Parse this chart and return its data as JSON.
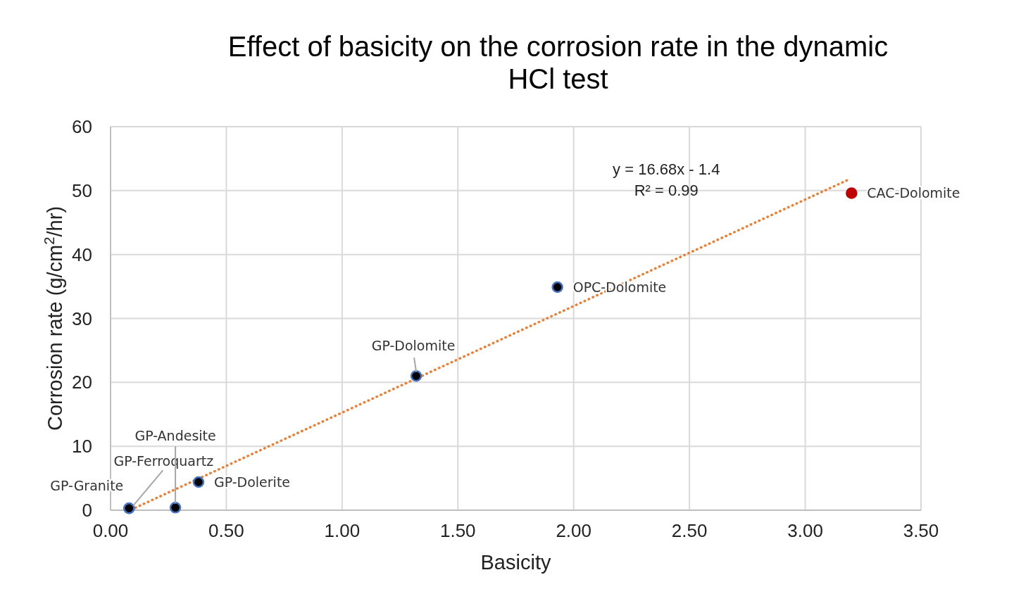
{
  "chart_data": {
    "type": "scatter",
    "title": "Effect of basicity on the corrosion rate in the dynamic HCl test",
    "xlabel": "Basicity",
    "ylabel": "Corrosion rate (g/cm$^{2}$/hr)",
    "xlim": [
      0,
      3.5
    ],
    "ylim": [
      0,
      60
    ],
    "xticks": [
      {
        "value": 0,
        "label": "0.00"
      },
      {
        "value": 0.5,
        "label": "0.50"
      },
      {
        "value": 1,
        "label": "1.00"
      },
      {
        "value": 1.5,
        "label": "1.50"
      },
      {
        "value": 2,
        "label": "2.00"
      },
      {
        "value": 2.5,
        "label": "2.50"
      },
      {
        "value": 3,
        "label": "3.00"
      },
      {
        "value": 3.5,
        "label": "3.50"
      }
    ],
    "yticks": [
      0,
      10,
      20,
      30,
      40,
      50,
      60
    ],
    "grid": true,
    "series": [
      {
        "marker": "circle",
        "x": [
          0.08,
          0.08,
          0.28,
          0.38,
          1.32,
          1.93,
          3.2
        ],
        "values": [
          0.3,
          0.3,
          0.4,
          4.4,
          21.0,
          34.9,
          49.6
        ],
        "colors": [
          "#000000",
          "#000000",
          "#000000",
          "#000000",
          "#000000",
          "#000000",
          "#c00000"
        ]
      },
      {
        "type": "line",
        "x": [
          0.09,
          3.18
        ],
        "values": [
          0.1,
          51.6
        ],
        "color": "#ed7d31",
        "line_style": "dotted",
        "marker": "none"
      }
    ],
    "annotations": [
      {
        "text": "GP-Granite",
        "x": 0.08,
        "y": 0.3
      },
      {
        "text": "GP-Ferroquartz",
        "x": 0.08,
        "y": 0.3
      },
      {
        "text": "GP-Andesite",
        "x": 0.28,
        "y": 0.4
      },
      {
        "text": "GP-Dolerite",
        "x": 0.38,
        "y": 4.4
      },
      {
        "text": "GP-Dolomite",
        "x": 1.32,
        "y": 21.0
      },
      {
        "text": "OPC-Dolomite",
        "x": 1.93,
        "y": 34.9
      },
      {
        "text": "CAC-Dolomite",
        "x": 3.2,
        "y": 49.6
      },
      "y = 16.68x - 1.4",
      "R² = 0.99"
    ]
  }
}
